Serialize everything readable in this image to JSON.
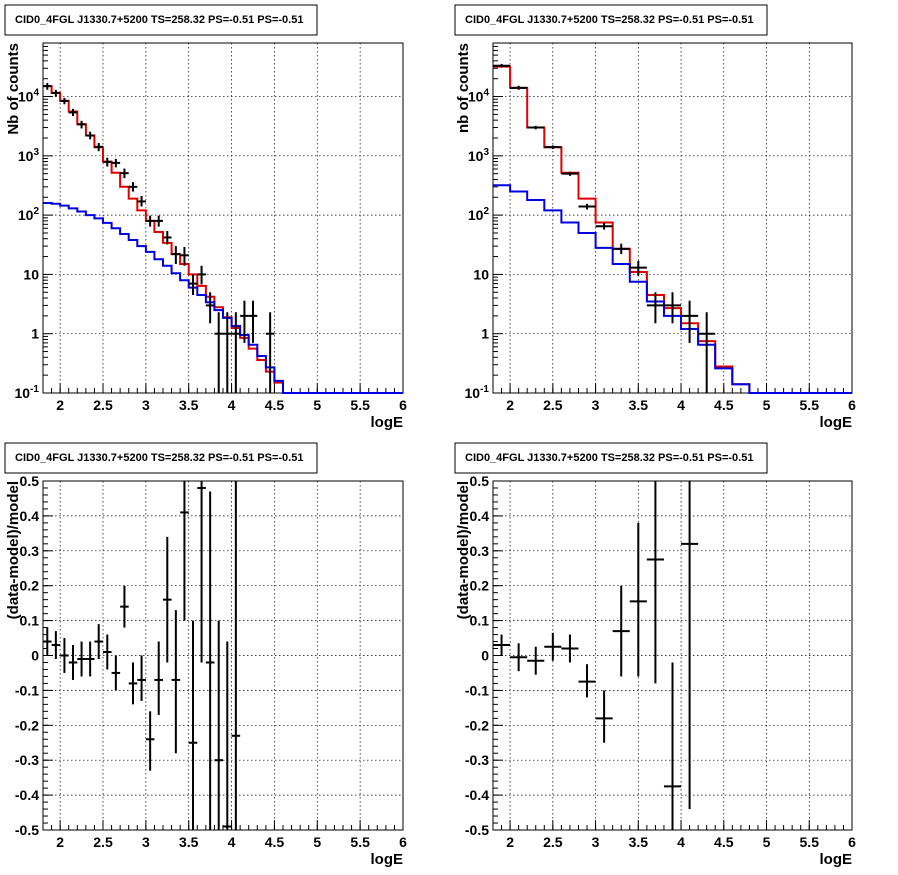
{
  "chart_data": [
    {
      "type": "step",
      "title": "CID0_4FGL J1330.7+5200 TS=258.32 PS=-0.51 PS=-0.51",
      "xlabel": "logE",
      "ylabel": "Nb of counts",
      "log_y": true,
      "xlim": [
        1.8,
        6.0
      ],
      "ylim": [
        0.1,
        80000
      ],
      "grid": true,
      "x_ticks": [
        "2",
        "2.5",
        "3",
        "3.5",
        "4",
        "4.5",
        "5",
        "5.5",
        "6"
      ],
      "y_ticks": [
        "10^-1",
        "1",
        "10",
        "10^2",
        "10^3",
        "10^4"
      ],
      "bin_edges": [
        1.8,
        1.9,
        2.0,
        2.1,
        2.2,
        2.3,
        2.4,
        2.5,
        2.6,
        2.7,
        2.8,
        2.9,
        3.0,
        3.1,
        3.2,
        3.3,
        3.4,
        3.5,
        3.6,
        3.7,
        3.8,
        3.9,
        4.0,
        4.1,
        4.2,
        4.3,
        4.4,
        4.5,
        4.6,
        4.7,
        4.8,
        4.9,
        5.0,
        5.1,
        5.2,
        5.3,
        5.4,
        5.5,
        5.6,
        5.7,
        5.8,
        5.9,
        6.0
      ],
      "series": [
        {
          "color": "#e00000",
          "values": [
            15000,
            11500,
            8500,
            5600,
            3400,
            2200,
            1400,
            800,
            520,
            300,
            190,
            120,
            80,
            52,
            34,
            22,
            15,
            10,
            6.4,
            4.2,
            2.8,
            1.9,
            1.25,
            0.85,
            0.56,
            0.36,
            0.23,
            0.15,
            0.1,
            0.1,
            0.1,
            0.1,
            0.1,
            0.1,
            0.1,
            0.1,
            0.1,
            0.1,
            0.1,
            0.1,
            0.1,
            0.1
          ]
        },
        {
          "color": "#0000e0",
          "values": [
            160,
            155,
            145,
            130,
            115,
            100,
            88,
            74,
            60,
            48,
            38,
            30,
            24,
            18,
            14,
            10.5,
            8,
            6,
            4.5,
            3.4,
            2.5,
            1.85,
            1.35,
            0.95,
            0.65,
            0.42,
            0.27,
            0.16,
            0.1,
            0.1,
            0.1,
            0.1,
            0.1,
            0.1,
            0.1,
            0.1,
            0.1,
            0.1,
            0.1,
            0.1,
            0.1,
            0.1
          ]
        }
      ],
      "points": [
        {
          "x": 1.85,
          "y": 15000,
          "ylo": 13000,
          "yhi": 17000
        },
        {
          "x": 1.95,
          "y": 11500,
          "ylo": 10000,
          "yhi": 13000
        },
        {
          "x": 2.05,
          "y": 8400,
          "ylo": 7400,
          "yhi": 9500
        },
        {
          "x": 2.15,
          "y": 5400,
          "ylo": 4700,
          "yhi": 6200
        },
        {
          "x": 2.25,
          "y": 3400,
          "ylo": 2900,
          "yhi": 3900
        },
        {
          "x": 2.35,
          "y": 2200,
          "ylo": 1900,
          "yhi": 2550
        },
        {
          "x": 2.45,
          "y": 1420,
          "ylo": 1200,
          "yhi": 1650
        },
        {
          "x": 2.55,
          "y": 790,
          "ylo": 660,
          "yhi": 930
        },
        {
          "x": 2.65,
          "y": 760,
          "ylo": 640,
          "yhi": 890
        },
        {
          "x": 2.75,
          "y": 510,
          "ylo": 420,
          "yhi": 610
        },
        {
          "x": 2.85,
          "y": 300,
          "ylo": 250,
          "yhi": 360
        },
        {
          "x": 2.95,
          "y": 170,
          "ylo": 140,
          "yhi": 210
        },
        {
          "x": 3.05,
          "y": 80,
          "ylo": 64,
          "yhi": 98
        },
        {
          "x": 3.15,
          "y": 80,
          "ylo": 64,
          "yhi": 98
        },
        {
          "x": 3.25,
          "y": 42,
          "ylo": 32,
          "yhi": 54
        },
        {
          "x": 3.35,
          "y": 22,
          "ylo": 15,
          "yhi": 30
        },
        {
          "x": 3.45,
          "y": 21,
          "ylo": 14,
          "yhi": 29
        },
        {
          "x": 3.55,
          "y": 7,
          "ylo": 4.5,
          "yhi": 10
        },
        {
          "x": 3.65,
          "y": 10,
          "ylo": 6.8,
          "yhi": 14
        },
        {
          "x": 3.75,
          "y": 3,
          "ylo": 1.5,
          "yhi": 5
        },
        {
          "x": 3.85,
          "y": 1,
          "ylo": 0.1,
          "yhi": 2.3
        },
        {
          "x": 3.95,
          "y": 1,
          "ylo": 0.1,
          "yhi": 2.3
        },
        {
          "x": 4.05,
          "y": 1,
          "ylo": 0.1,
          "yhi": 2.3
        },
        {
          "x": 4.15,
          "y": 2,
          "ylo": 0.7,
          "yhi": 3.6
        },
        {
          "x": 4.25,
          "y": 2,
          "ylo": 0.7,
          "yhi": 3.6
        },
        {
          "x": 4.45,
          "y": 1,
          "ylo": 0.1,
          "yhi": 2.3
        }
      ]
    },
    {
      "type": "step",
      "title": "CID0_4FGL J1330.7+5200 TS=258.32 PS=-0.51 PS=-0.51",
      "xlabel": "logE",
      "ylabel": "nb of counts",
      "log_y": true,
      "xlim": [
        1.8,
        6.0
      ],
      "ylim": [
        0.1,
        80000
      ],
      "grid": true,
      "x_ticks": [
        "2",
        "2.5",
        "3",
        "3.5",
        "4",
        "4.5",
        "5",
        "5.5",
        "6"
      ],
      "y_ticks": [
        "10^-1",
        "1",
        "10",
        "10^2",
        "10^3",
        "10^4"
      ],
      "bin_edges": [
        1.8,
        2.0,
        2.2,
        2.4,
        2.6,
        2.8,
        3.0,
        3.2,
        3.4,
        3.6,
        3.8,
        4.0,
        4.2,
        4.4,
        4.6,
        4.8,
        5.0,
        5.2,
        5.4,
        5.6,
        5.8,
        6.0
      ],
      "series": [
        {
          "color": "#e00000",
          "values": [
            32000,
            14000,
            3000,
            1400,
            520,
            190,
            75,
            27,
            11,
            4.5,
            2.7,
            1.5,
            0.75,
            0.28,
            0.14,
            0.1,
            0.1,
            0.1,
            0.1,
            0.1,
            0.1
          ]
        },
        {
          "color": "#0000e0",
          "values": [
            320,
            250,
            180,
            120,
            75,
            50,
            28,
            15,
            7.5,
            3.5,
            2.0,
            1.2,
            0.65,
            0.26,
            0.14,
            0.1,
            0.1,
            0.1,
            0.1,
            0.1,
            0.1
          ]
        }
      ],
      "points": [
        {
          "x": 1.9,
          "y": 33000,
          "ylo": 31000,
          "yhi": 35500
        },
        {
          "x": 2.1,
          "y": 14000,
          "ylo": 13000,
          "yhi": 15200
        },
        {
          "x": 2.3,
          "y": 3000,
          "ylo": 2800,
          "yhi": 3200
        },
        {
          "x": 2.5,
          "y": 1400,
          "ylo": 1300,
          "yhi": 1500
        },
        {
          "x": 2.7,
          "y": 500,
          "ylo": 460,
          "yhi": 540
        },
        {
          "x": 2.9,
          "y": 140,
          "ylo": 125,
          "yhi": 155
        },
        {
          "x": 3.1,
          "y": 65,
          "ylo": 57,
          "yhi": 74
        },
        {
          "x": 3.3,
          "y": 27,
          "ylo": 22,
          "yhi": 33
        },
        {
          "x": 3.5,
          "y": 13,
          "ylo": 9.5,
          "yhi": 17
        },
        {
          "x": 3.7,
          "y": 3,
          "ylo": 1.5,
          "yhi": 5
        },
        {
          "x": 3.9,
          "y": 3,
          "ylo": 1.5,
          "yhi": 5
        },
        {
          "x": 4.1,
          "y": 2,
          "ylo": 0.7,
          "yhi": 3.6
        },
        {
          "x": 4.3,
          "y": 1,
          "ylo": 0.1,
          "yhi": 2.3
        }
      ]
    },
    {
      "type": "scatter",
      "title": "CID0_4FGL J1330.7+5200 TS=258.32 PS=-0.51 PS=-0.51",
      "xlabel": "logE",
      "ylabel": "(data-model)/model",
      "xlim": [
        1.8,
        6.0
      ],
      "ylim": [
        -0.5,
        0.5
      ],
      "grid": true,
      "x_ticks": [
        "2",
        "2.5",
        "3",
        "3.5",
        "4",
        "4.5",
        "5",
        "5.5",
        "6"
      ],
      "y_ticks": [
        "-0.5",
        "-0.4",
        "-0.3",
        "-0.2",
        "-0.1",
        "0",
        "0.1",
        "0.2",
        "0.3",
        "0.4",
        "0.5"
      ],
      "xerr": 0.05,
      "points": [
        {
          "x": 1.85,
          "y": 0.04,
          "ylo": 0.0,
          "yhi": 0.08
        },
        {
          "x": 1.95,
          "y": 0.03,
          "ylo": -0.01,
          "yhi": 0.07
        },
        {
          "x": 2.05,
          "y": 0.0,
          "ylo": -0.05,
          "yhi": 0.05
        },
        {
          "x": 2.15,
          "y": -0.02,
          "ylo": -0.07,
          "yhi": 0.03
        },
        {
          "x": 2.25,
          "y": -0.01,
          "ylo": -0.06,
          "yhi": 0.04
        },
        {
          "x": 2.35,
          "y": -0.01,
          "ylo": -0.06,
          "yhi": 0.04
        },
        {
          "x": 2.45,
          "y": 0.04,
          "ylo": -0.01,
          "yhi": 0.09
        },
        {
          "x": 2.55,
          "y": 0.01,
          "ylo": -0.04,
          "yhi": 0.06
        },
        {
          "x": 2.65,
          "y": -0.05,
          "ylo": -0.1,
          "yhi": 0.0
        },
        {
          "x": 2.75,
          "y": 0.14,
          "ylo": 0.08,
          "yhi": 0.2
        },
        {
          "x": 2.85,
          "y": -0.08,
          "ylo": -0.14,
          "yhi": -0.02
        },
        {
          "x": 2.95,
          "y": -0.07,
          "ylo": -0.13,
          "yhi": 0.0
        },
        {
          "x": 3.05,
          "y": -0.24,
          "ylo": -0.33,
          "yhi": -0.16
        },
        {
          "x": 3.15,
          "y": -0.07,
          "ylo": -0.17,
          "yhi": 0.04
        },
        {
          "x": 3.25,
          "y": 0.16,
          "ylo": -0.02,
          "yhi": 0.34
        },
        {
          "x": 3.35,
          "y": -0.07,
          "ylo": -0.28,
          "yhi": 0.13
        },
        {
          "x": 3.45,
          "y": 0.41,
          "ylo": 0.1,
          "yhi": 0.5
        },
        {
          "x": 3.55,
          "y": -0.25,
          "ylo": -0.5,
          "yhi": 0.1
        },
        {
          "x": 3.65,
          "y": 0.48,
          "ylo": -0.02,
          "yhi": 0.5
        },
        {
          "x": 3.75,
          "y": -0.02,
          "ylo": -0.5,
          "yhi": 0.47
        },
        {
          "x": 3.85,
          "y": -0.3,
          "ylo": -0.5,
          "yhi": 0.1
        },
        {
          "x": 3.95,
          "y": -0.49,
          "ylo": -0.5,
          "yhi": 0.04
        },
        {
          "x": 4.05,
          "y": -0.23,
          "ylo": -0.5,
          "yhi": 0.5
        }
      ]
    },
    {
      "type": "scatter",
      "title": "CID0_4FGL J1330.7+5200 TS=258.32 PS=-0.51 PS=-0.51",
      "xlabel": "logE",
      "ylabel": "(data-model)/model",
      "xlim": [
        1.8,
        6.0
      ],
      "ylim": [
        -0.5,
        0.5
      ],
      "grid": true,
      "x_ticks": [
        "2",
        "2.5",
        "3",
        "3.5",
        "4",
        "4.5",
        "5",
        "5.5",
        "6"
      ],
      "y_ticks": [
        "-0.5",
        "-0.4",
        "-0.3",
        "-0.2",
        "-0.1",
        "0",
        "0.1",
        "0.2",
        "0.3",
        "0.4",
        "0.5"
      ],
      "xerr": 0.1,
      "points": [
        {
          "x": 1.9,
          "y": 0.03,
          "ylo": 0.0,
          "yhi": 0.06
        },
        {
          "x": 2.1,
          "y": -0.005,
          "ylo": -0.045,
          "yhi": 0.035
        },
        {
          "x": 2.3,
          "y": -0.015,
          "ylo": -0.055,
          "yhi": 0.025
        },
        {
          "x": 2.5,
          "y": 0.025,
          "ylo": -0.015,
          "yhi": 0.065
        },
        {
          "x": 2.7,
          "y": 0.02,
          "ylo": -0.02,
          "yhi": 0.06
        },
        {
          "x": 2.9,
          "y": -0.075,
          "ylo": -0.12,
          "yhi": -0.025
        },
        {
          "x": 3.1,
          "y": -0.18,
          "ylo": -0.25,
          "yhi": -0.1
        },
        {
          "x": 3.3,
          "y": 0.07,
          "ylo": -0.06,
          "yhi": 0.2
        },
        {
          "x": 3.5,
          "y": 0.155,
          "ylo": -0.06,
          "yhi": 0.38
        },
        {
          "x": 3.7,
          "y": 0.275,
          "ylo": -0.08,
          "yhi": 0.5
        },
        {
          "x": 3.9,
          "y": -0.375,
          "ylo": -0.5,
          "yhi": -0.02
        },
        {
          "x": 4.1,
          "y": 0.32,
          "ylo": -0.44,
          "yhi": 0.5
        }
      ]
    }
  ]
}
